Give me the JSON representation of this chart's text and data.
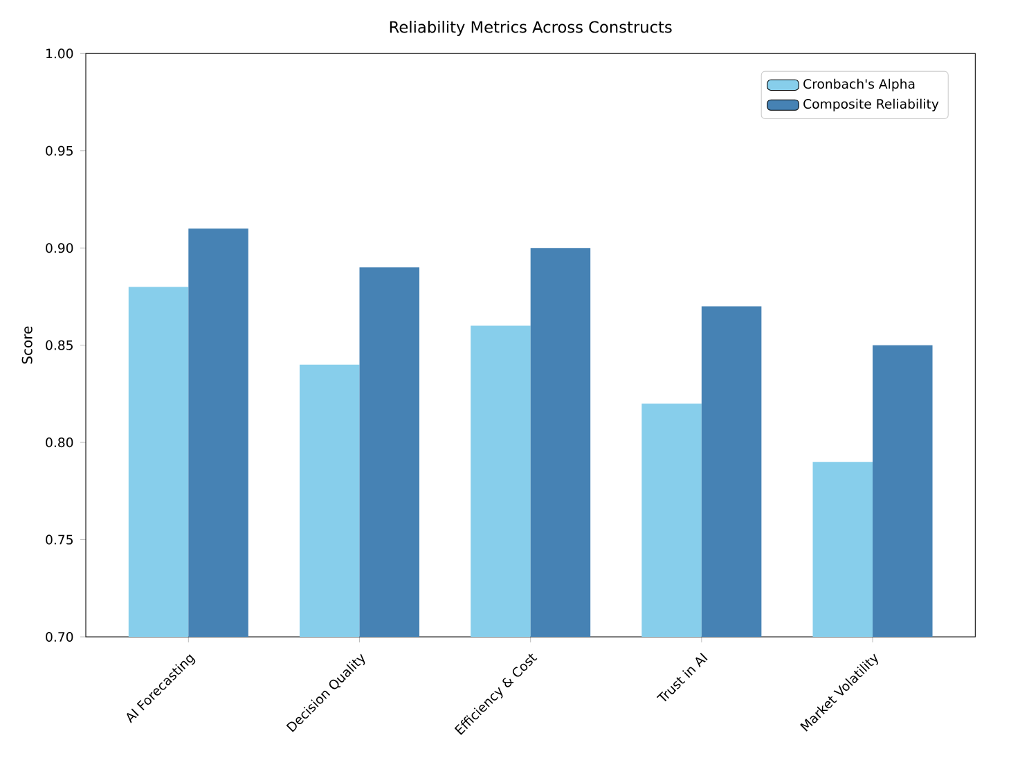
{
  "chart_data": {
    "type": "bar",
    "title": "Reliability Metrics Across Constructs",
    "ylabel": "Score",
    "categories": [
      "AI Forecasting",
      "Decision Quality",
      "Efficiency & Cost",
      "Trust in AI",
      "Market Volatility"
    ],
    "series": [
      {
        "name": "Cronbach's Alpha",
        "color": "#87ceeb",
        "values": [
          0.88,
          0.84,
          0.86,
          0.82,
          0.79
        ]
      },
      {
        "name": "Composite Reliability",
        "color": "#4682b4",
        "values": [
          0.91,
          0.89,
          0.9,
          0.87,
          0.85
        ]
      }
    ],
    "ylim": [
      0.7,
      1.0
    ],
    "yticks": [
      {
        "value": 0.7,
        "label": "0.70"
      },
      {
        "value": 0.75,
        "label": "0.75"
      },
      {
        "value": 0.8,
        "label": "0.80"
      },
      {
        "value": 0.85,
        "label": "0.85"
      },
      {
        "value": 0.9,
        "label": "0.90"
      },
      {
        "value": 0.95,
        "label": "0.95"
      },
      {
        "value": 1.0,
        "label": "1.00"
      }
    ],
    "legend": "top right",
    "grid": false
  }
}
